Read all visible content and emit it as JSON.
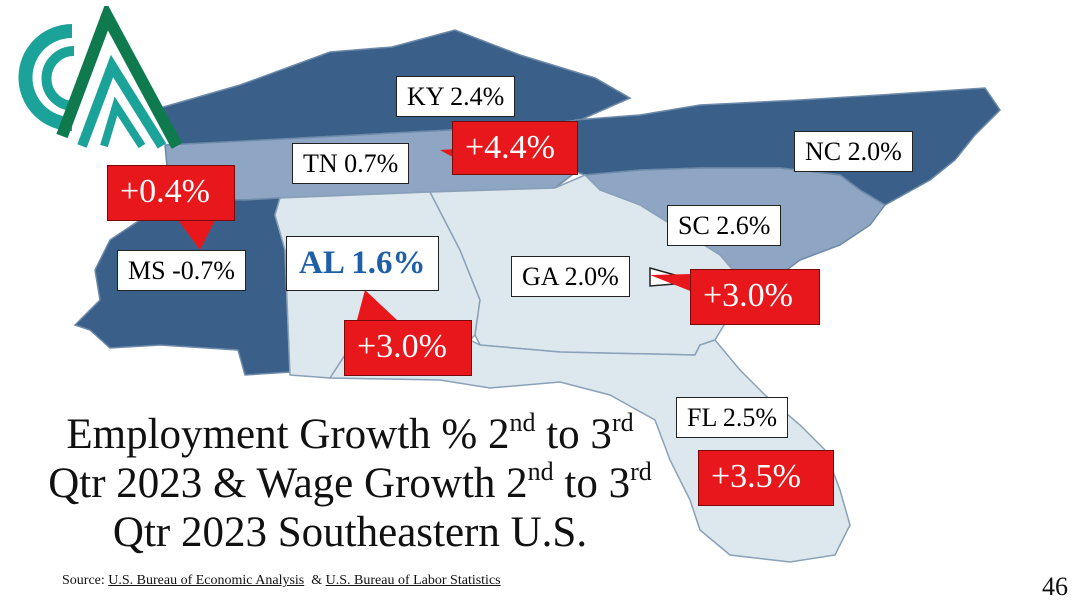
{
  "title": {
    "line1_pre": "Employment Growth % 2",
    "line1_sup1": "nd",
    "line1_mid": " to 3",
    "line1_sup2": "rd",
    "line2_pre": "Qtr 2023 & Wage Growth 2",
    "line2_sup1": "nd",
    "line2_mid": " to 3",
    "line2_sup2": "rd",
    "line3": "Qtr 2023 Southeastern U.S."
  },
  "states": [
    {
      "key": "ky",
      "label": "KY 2.4%",
      "wage": ""
    },
    {
      "key": "tn",
      "label": "TN 0.7%",
      "wage": "+4.4%"
    },
    {
      "key": "nc",
      "label": "NC 2.0%",
      "wage": ""
    },
    {
      "key": "sc",
      "label": "SC 2.6%",
      "wage": ""
    },
    {
      "key": "ms",
      "label": "MS -0.7%",
      "wage": "+0.4%"
    },
    {
      "key": "al",
      "label": "AL 1.6%",
      "wage": "+3.0%"
    },
    {
      "key": "ga",
      "label": "GA 2.0%",
      "wage": "+3.0%"
    },
    {
      "key": "fl",
      "label": "FL 2.5%",
      "wage": "+3.5%"
    }
  ],
  "source": {
    "prefix": "Source: ",
    "link1": "U.S. Bureau of Economic Analysis",
    "separator": "  & ",
    "link2": "U.S. Bureau of Labor Statistics"
  },
  "page_number": "46",
  "colors": {
    "dark_blue": "#3a6089",
    "mid_blue": "#8ea6c3",
    "light_blue": "#dde7ee",
    "callout_red": "#e8171b",
    "al_label_blue": "#1f5fa8",
    "logo_teal": "#1ba39a",
    "logo_green": "#0f7a4e"
  },
  "logo": {
    "icon": "cm-logo-icon"
  }
}
